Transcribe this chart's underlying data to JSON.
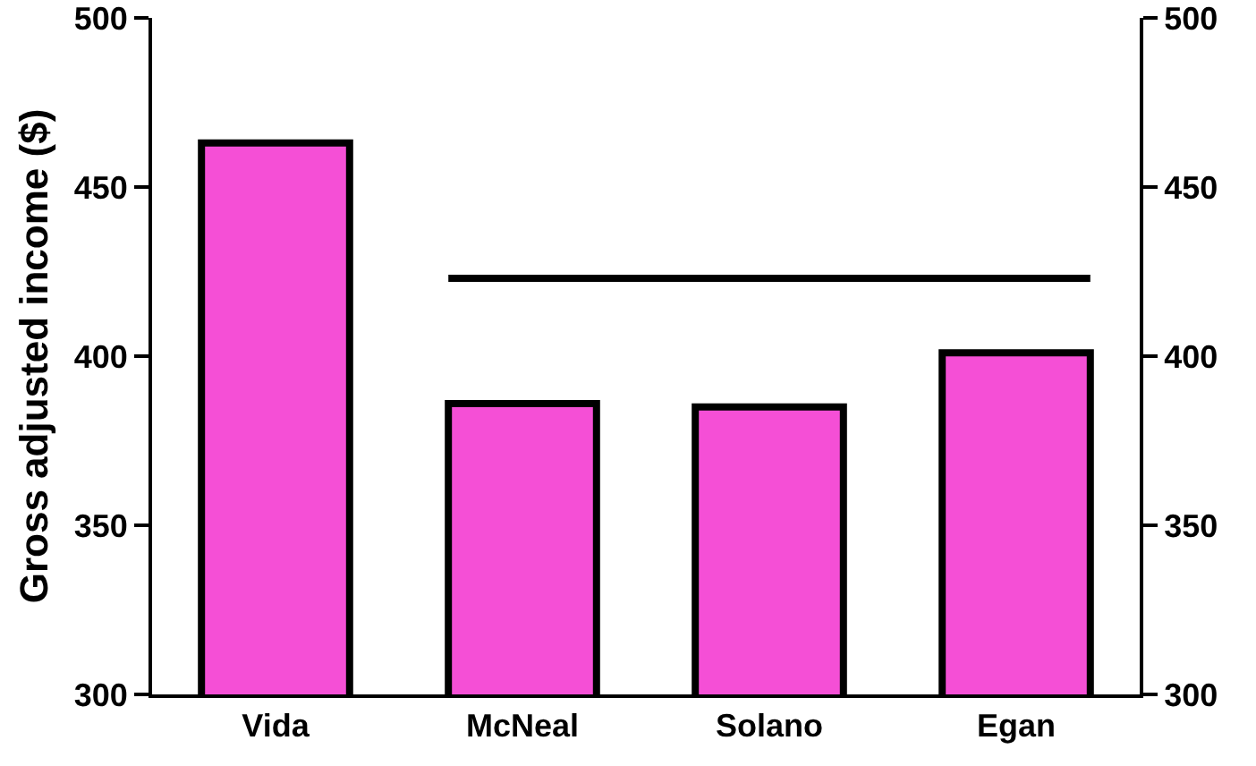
{
  "chart_data": {
    "type": "bar",
    "ylabel": "Gross adjusted income ($)",
    "categories": [
      "Vida",
      "McNeal",
      "Solano",
      "Egan"
    ],
    "values": [
      463,
      386,
      385,
      401
    ],
    "color": "#f54fd6",
    "ylim": [
      300,
      500
    ],
    "yticks": [
      300,
      350,
      400,
      450,
      500
    ],
    "y2lim": [
      300,
      500
    ],
    "y2ticks": [
      300,
      350,
      400,
      450,
      500
    ],
    "ref_lines": [
      {
        "axis": "y",
        "value": 423,
        "color": "#000000",
        "line_style": "solid"
      }
    ],
    "grid": false
  }
}
